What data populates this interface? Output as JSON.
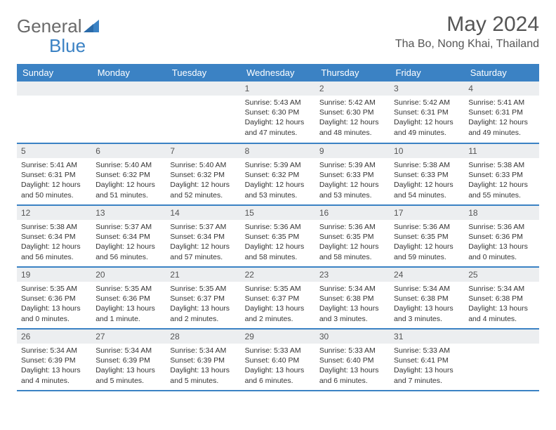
{
  "logo": {
    "text1": "General",
    "text2": "Blue"
  },
  "title": "May 2024",
  "location": "Tha Bo, Nong Khai, Thailand",
  "headers": [
    "Sunday",
    "Monday",
    "Tuesday",
    "Wednesday",
    "Thursday",
    "Friday",
    "Saturday"
  ],
  "colors": {
    "header_bg": "#3b82c4",
    "daynum_bg": "#eceef0",
    "border": "#3b82c4"
  },
  "weeks": [
    [
      null,
      null,
      null,
      {
        "n": "1",
        "sr": "5:43 AM",
        "ss": "6:30 PM",
        "dl": "12 hours and 47 minutes."
      },
      {
        "n": "2",
        "sr": "5:42 AM",
        "ss": "6:30 PM",
        "dl": "12 hours and 48 minutes."
      },
      {
        "n": "3",
        "sr": "5:42 AM",
        "ss": "6:31 PM",
        "dl": "12 hours and 49 minutes."
      },
      {
        "n": "4",
        "sr": "5:41 AM",
        "ss": "6:31 PM",
        "dl": "12 hours and 49 minutes."
      }
    ],
    [
      {
        "n": "5",
        "sr": "5:41 AM",
        "ss": "6:31 PM",
        "dl": "12 hours and 50 minutes."
      },
      {
        "n": "6",
        "sr": "5:40 AM",
        "ss": "6:32 PM",
        "dl": "12 hours and 51 minutes."
      },
      {
        "n": "7",
        "sr": "5:40 AM",
        "ss": "6:32 PM",
        "dl": "12 hours and 52 minutes."
      },
      {
        "n": "8",
        "sr": "5:39 AM",
        "ss": "6:32 PM",
        "dl": "12 hours and 53 minutes."
      },
      {
        "n": "9",
        "sr": "5:39 AM",
        "ss": "6:33 PM",
        "dl": "12 hours and 53 minutes."
      },
      {
        "n": "10",
        "sr": "5:38 AM",
        "ss": "6:33 PM",
        "dl": "12 hours and 54 minutes."
      },
      {
        "n": "11",
        "sr": "5:38 AM",
        "ss": "6:33 PM",
        "dl": "12 hours and 55 minutes."
      }
    ],
    [
      {
        "n": "12",
        "sr": "5:38 AM",
        "ss": "6:34 PM",
        "dl": "12 hours and 56 minutes."
      },
      {
        "n": "13",
        "sr": "5:37 AM",
        "ss": "6:34 PM",
        "dl": "12 hours and 56 minutes."
      },
      {
        "n": "14",
        "sr": "5:37 AM",
        "ss": "6:34 PM",
        "dl": "12 hours and 57 minutes."
      },
      {
        "n": "15",
        "sr": "5:36 AM",
        "ss": "6:35 PM",
        "dl": "12 hours and 58 minutes."
      },
      {
        "n": "16",
        "sr": "5:36 AM",
        "ss": "6:35 PM",
        "dl": "12 hours and 58 minutes."
      },
      {
        "n": "17",
        "sr": "5:36 AM",
        "ss": "6:35 PM",
        "dl": "12 hours and 59 minutes."
      },
      {
        "n": "18",
        "sr": "5:36 AM",
        "ss": "6:36 PM",
        "dl": "13 hours and 0 minutes."
      }
    ],
    [
      {
        "n": "19",
        "sr": "5:35 AM",
        "ss": "6:36 PM",
        "dl": "13 hours and 0 minutes."
      },
      {
        "n": "20",
        "sr": "5:35 AM",
        "ss": "6:36 PM",
        "dl": "13 hours and 1 minute."
      },
      {
        "n": "21",
        "sr": "5:35 AM",
        "ss": "6:37 PM",
        "dl": "13 hours and 2 minutes."
      },
      {
        "n": "22",
        "sr": "5:35 AM",
        "ss": "6:37 PM",
        "dl": "13 hours and 2 minutes."
      },
      {
        "n": "23",
        "sr": "5:34 AM",
        "ss": "6:38 PM",
        "dl": "13 hours and 3 minutes."
      },
      {
        "n": "24",
        "sr": "5:34 AM",
        "ss": "6:38 PM",
        "dl": "13 hours and 3 minutes."
      },
      {
        "n": "25",
        "sr": "5:34 AM",
        "ss": "6:38 PM",
        "dl": "13 hours and 4 minutes."
      }
    ],
    [
      {
        "n": "26",
        "sr": "5:34 AM",
        "ss": "6:39 PM",
        "dl": "13 hours and 4 minutes."
      },
      {
        "n": "27",
        "sr": "5:34 AM",
        "ss": "6:39 PM",
        "dl": "13 hours and 5 minutes."
      },
      {
        "n": "28",
        "sr": "5:34 AM",
        "ss": "6:39 PM",
        "dl": "13 hours and 5 minutes."
      },
      {
        "n": "29",
        "sr": "5:33 AM",
        "ss": "6:40 PM",
        "dl": "13 hours and 6 minutes."
      },
      {
        "n": "30",
        "sr": "5:33 AM",
        "ss": "6:40 PM",
        "dl": "13 hours and 6 minutes."
      },
      {
        "n": "31",
        "sr": "5:33 AM",
        "ss": "6:41 PM",
        "dl": "13 hours and 7 minutes."
      },
      null
    ]
  ],
  "labels": {
    "sunrise": "Sunrise:",
    "sunset": "Sunset:",
    "daylight": "Daylight:"
  }
}
